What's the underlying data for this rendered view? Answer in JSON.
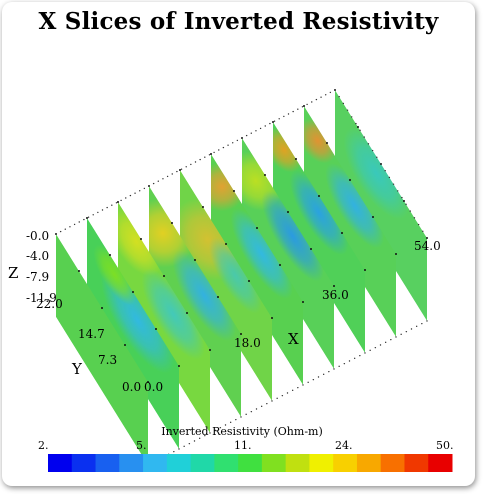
{
  "title": "X Slices of Inverted Resistivity",
  "axes": {
    "z_label": "Z",
    "z_ticks": [
      "-0.0",
      "-4.0",
      "-7.9",
      "-11.9"
    ],
    "y_label": "Y",
    "y_ticks": [
      "22.0",
      "14.7",
      "7.3",
      "0.0"
    ],
    "x_label": "X",
    "x_ticks": [
      "0.0",
      "18.0",
      "36.0",
      "54.0"
    ]
  },
  "colorbar": {
    "title": "Inverted Resistivity (Ohm-m)",
    "tick_labels": [
      "2.",
      "5.",
      "11.",
      "24.",
      "50."
    ],
    "colors": [
      "#0000ee",
      "#0a30f0",
      "#1860f0",
      "#2890f0",
      "#30b8f0",
      "#20d0d8",
      "#20d8a8",
      "#30e070",
      "#40e040",
      "#80e020",
      "#c0e010",
      "#f0f000",
      "#f8d000",
      "#f8a800",
      "#f87000",
      "#f03800",
      "#e80000"
    ]
  },
  "slices": [
    {
      "x": 0.0,
      "base": "#58d050",
      "blobs": []
    },
    {
      "x": 6.0,
      "base": "#48d058",
      "blobs": [
        {
          "u": 0.55,
          "v": 0.25,
          "ru": 0.35,
          "rv": 0.25,
          "c": "#30b8e8"
        },
        {
          "u": 0.3,
          "v": 0.15,
          "ru": 0.2,
          "rv": 0.15,
          "c": "#80e020"
        }
      ]
    },
    {
      "x": 12.0,
      "base": "#78d840",
      "blobs": [
        {
          "u": 0.2,
          "v": 0.12,
          "ru": 0.22,
          "rv": 0.25,
          "c": "#d8e020"
        },
        {
          "u": 0.6,
          "v": 0.28,
          "ru": 0.3,
          "rv": 0.22,
          "c": "#40c8c0"
        }
      ]
    },
    {
      "x": 18.0,
      "base": "#60d050",
      "blobs": [
        {
          "u": 0.15,
          "v": 0.3,
          "ru": 0.2,
          "rv": 0.4,
          "c": "#e8d020"
        },
        {
          "u": 0.6,
          "v": 0.25,
          "ru": 0.3,
          "rv": 0.22,
          "c": "#30b0e8"
        }
      ]
    },
    {
      "x": 24.0,
      "base": "#70d448",
      "blobs": [
        {
          "u": 0.3,
          "v": 0.3,
          "ru": 0.25,
          "rv": 0.4,
          "c": "#d8c030"
        },
        {
          "u": 0.6,
          "v": 0.2,
          "ru": 0.25,
          "rv": 0.18,
          "c": "#48c8b0"
        }
      ]
    },
    {
      "x": 30.0,
      "base": "#58d050",
      "blobs": [
        {
          "u": 0.12,
          "v": 0.18,
          "ru": 0.14,
          "rv": 0.3,
          "c": "#e8a030"
        },
        {
          "u": 0.55,
          "v": 0.22,
          "ru": 0.3,
          "rv": 0.2,
          "c": "#30b8e8"
        }
      ]
    },
    {
      "x": 36.0,
      "base": "#58d058",
      "blobs": [
        {
          "u": 0.15,
          "v": 0.25,
          "ru": 0.18,
          "rv": 0.3,
          "c": "#c0e020"
        },
        {
          "u": 0.55,
          "v": 0.2,
          "ru": 0.3,
          "rv": 0.2,
          "c": "#2898e8"
        }
      ]
    },
    {
      "x": 42.0,
      "base": "#50d058",
      "blobs": [
        {
          "u": 0.12,
          "v": 0.12,
          "ru": 0.14,
          "rv": 0.2,
          "c": "#e8a020"
        },
        {
          "u": 0.5,
          "v": 0.2,
          "ru": 0.28,
          "rv": 0.2,
          "c": "#28a0e8"
        }
      ]
    },
    {
      "x": 48.0,
      "base": "#58d058",
      "blobs": [
        {
          "u": 0.15,
          "v": 0.15,
          "ru": 0.14,
          "rv": 0.2,
          "c": "#e89030"
        },
        {
          "u": 0.55,
          "v": 0.22,
          "ru": 0.28,
          "rv": 0.2,
          "c": "#30b0e8"
        }
      ]
    },
    {
      "x": 54.0,
      "base": "#58d060",
      "blobs": [
        {
          "u": 0.45,
          "v": 0.2,
          "ru": 0.3,
          "rv": 0.25,
          "c": "#38c8c0"
        }
      ]
    }
  ]
}
